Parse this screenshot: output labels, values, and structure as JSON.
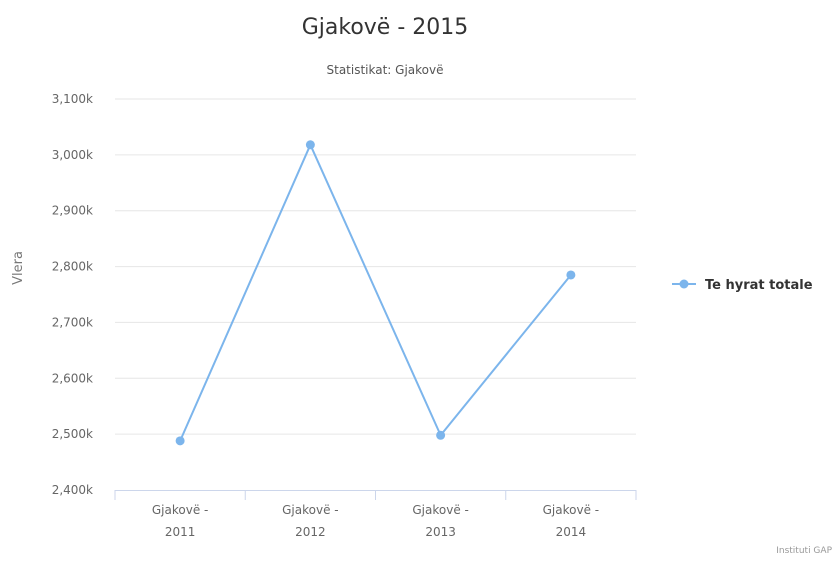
{
  "chart_data": {
    "type": "line",
    "title": "Gjakovë - 2015",
    "subtitle": "Statistikat: Gjakovë",
    "ylabel": "Vlera",
    "xlabel": "",
    "ylim": [
      2400,
      3100
    ],
    "yticks": [
      2400,
      2500,
      2600,
      2700,
      2800,
      2900,
      3000,
      3100
    ],
    "ytick_labels": [
      "2,400k",
      "2,500k",
      "2,600k",
      "2,700k",
      "2,800k",
      "2,900k",
      "3,000k",
      "3,100k"
    ],
    "categories": [
      [
        "Gjakovë -",
        "2011"
      ],
      [
        "Gjakovë -",
        "2012"
      ],
      [
        "Gjakovë -",
        "2013"
      ],
      [
        "Gjakovë -",
        "2014"
      ]
    ],
    "series": [
      {
        "name": "Te hyrat totale",
        "color": "#7cb5ec",
        "values": [
          2488,
          3018,
          2498,
          2785
        ]
      }
    ],
    "grid": true,
    "legend_position": "right",
    "credits": "Instituti GAP"
  }
}
